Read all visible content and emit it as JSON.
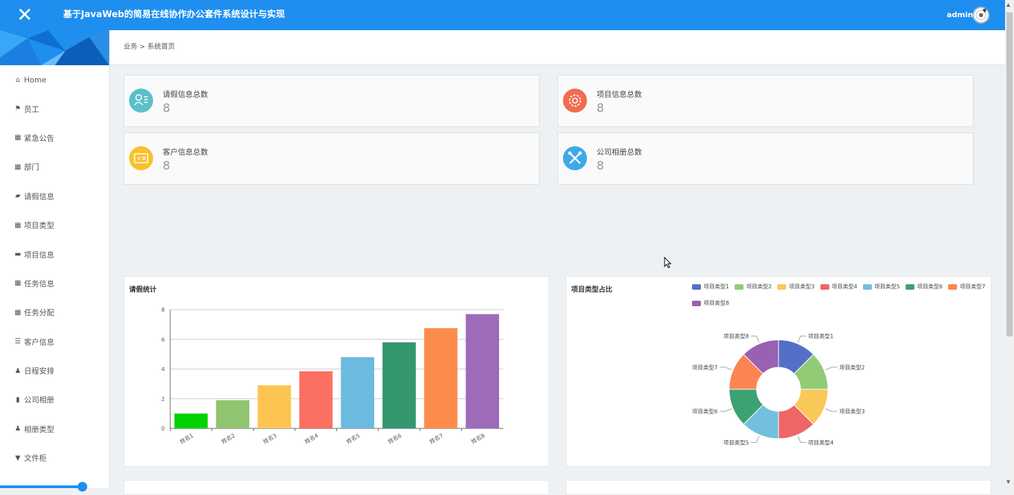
{
  "header": {
    "title": "基于JavaWeb的简易在线协作办公套件系统设计与实现",
    "user": "admin"
  },
  "sidebar": {
    "items": [
      {
        "label": "Home",
        "icon": "home-icon"
      },
      {
        "label": "员工",
        "icon": "flag-icon"
      },
      {
        "label": "紧急公告",
        "icon": "grid-icon"
      },
      {
        "label": "部门",
        "icon": "grid-icon"
      },
      {
        "label": "请假信息",
        "icon": "thumbs-up-icon"
      },
      {
        "label": "项目类型",
        "icon": "grid-icon"
      },
      {
        "label": "项目信息",
        "icon": "briefcase-icon"
      },
      {
        "label": "任务信息",
        "icon": "grid-icon"
      },
      {
        "label": "任务分配",
        "icon": "grid-icon"
      },
      {
        "label": "客户信息",
        "icon": "list-icon"
      },
      {
        "label": "日程安排",
        "icon": "user-icon"
      },
      {
        "label": "公司相册",
        "icon": "bar-chart-icon"
      },
      {
        "label": "相册类型",
        "icon": "user-icon"
      },
      {
        "label": "文件柜",
        "icon": "cabinet-icon"
      }
    ]
  },
  "breadcrumb": "业务 > 系统首页",
  "stats": [
    {
      "label": "请假信息总数",
      "value": "8",
      "color": "#5bc0ca",
      "icon": "contact-card-icon"
    },
    {
      "label": "项目信息总数",
      "value": "8",
      "color": "#f26c4f",
      "icon": "gear-icon"
    },
    {
      "label": "客户信息总数",
      "value": "8",
      "color": "#f7c12e",
      "icon": "money-card-icon"
    },
    {
      "label": "公司相册总数",
      "value": "8",
      "color": "#3fa9e8",
      "icon": "tools-icon"
    }
  ],
  "charts": [
    {
      "type": "bar",
      "title": "请假统计",
      "categories": [
        "姓名1",
        "姓名2",
        "姓名3",
        "姓名4",
        "姓名5",
        "姓名6",
        "姓名7",
        "姓名8"
      ],
      "values": [
        1,
        1.9,
        2.9,
        3.85,
        4.8,
        5.8,
        6.75,
        7.7
      ],
      "colors": [
        "#00d300",
        "#91c46e",
        "#fec451",
        "#fc6f63",
        "#6cbadf",
        "#33966d",
        "#fd8c4c",
        "#9e6bb8"
      ],
      "ylim": [
        0,
        8
      ],
      "yticks": [
        0,
        2,
        4,
        6,
        8
      ]
    },
    {
      "type": "pie",
      "title": "项目类型占比",
      "categories": [
        "项目类型1",
        "项目类型2",
        "项目类型3",
        "项目类型4",
        "项目类型5",
        "项目类型6",
        "项目类型7",
        "项目类型8"
      ],
      "values": [
        1,
        1,
        1,
        1,
        1,
        1,
        1,
        1
      ],
      "colors": [
        "#5470c6",
        "#91cc75",
        "#fac858",
        "#ee6666",
        "#73c0de",
        "#3ba272",
        "#fc8452",
        "#9a60b4"
      ],
      "legend": "top-right"
    }
  ]
}
